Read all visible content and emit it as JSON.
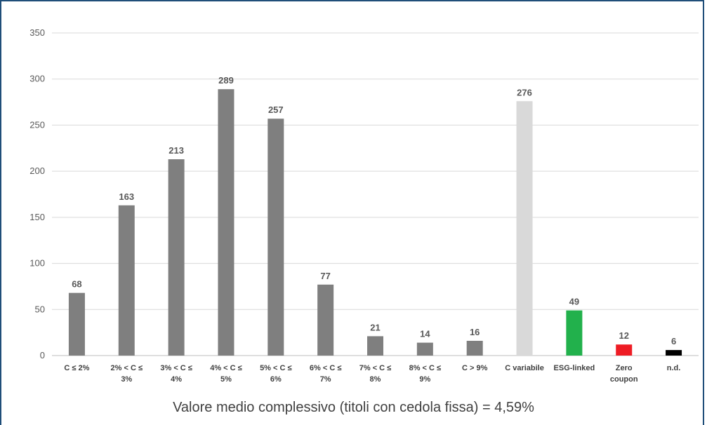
{
  "chart_data": {
    "type": "bar",
    "categories": [
      [
        "C ≤ 2%"
      ],
      [
        "2% < C ≤",
        "3%"
      ],
      [
        "3% < C ≤",
        "4%"
      ],
      [
        "4% < C ≤",
        "5%"
      ],
      [
        "5% < C ≤",
        "6%"
      ],
      [
        "6% < C ≤",
        "7%"
      ],
      [
        "7% < C ≤",
        "8%"
      ],
      [
        "8% < C ≤",
        "9%"
      ],
      [
        "C > 9%"
      ],
      [
        "C variabile"
      ],
      [
        "ESG-linked"
      ],
      [
        "Zero",
        "coupon"
      ],
      [
        "n.d."
      ]
    ],
    "values": [
      68,
      163,
      213,
      289,
      257,
      77,
      21,
      14,
      16,
      276,
      49,
      12,
      6
    ],
    "colors": [
      "#7f7f7f",
      "#7f7f7f",
      "#7f7f7f",
      "#7f7f7f",
      "#7f7f7f",
      "#7f7f7f",
      "#7f7f7f",
      "#7f7f7f",
      "#7f7f7f",
      "#d9d9d9",
      "#22b14c",
      "#ee1c24",
      "#000000"
    ],
    "ylim": [
      0,
      350
    ],
    "yticks": [
      0,
      50,
      100,
      150,
      200,
      250,
      300,
      350
    ],
    "grid": true,
    "legend": "none",
    "title": "",
    "xlabel": "",
    "ylabel": ""
  },
  "footnote": "Valore medio complessivo (titoli con cedola fissa) = 4,59%"
}
